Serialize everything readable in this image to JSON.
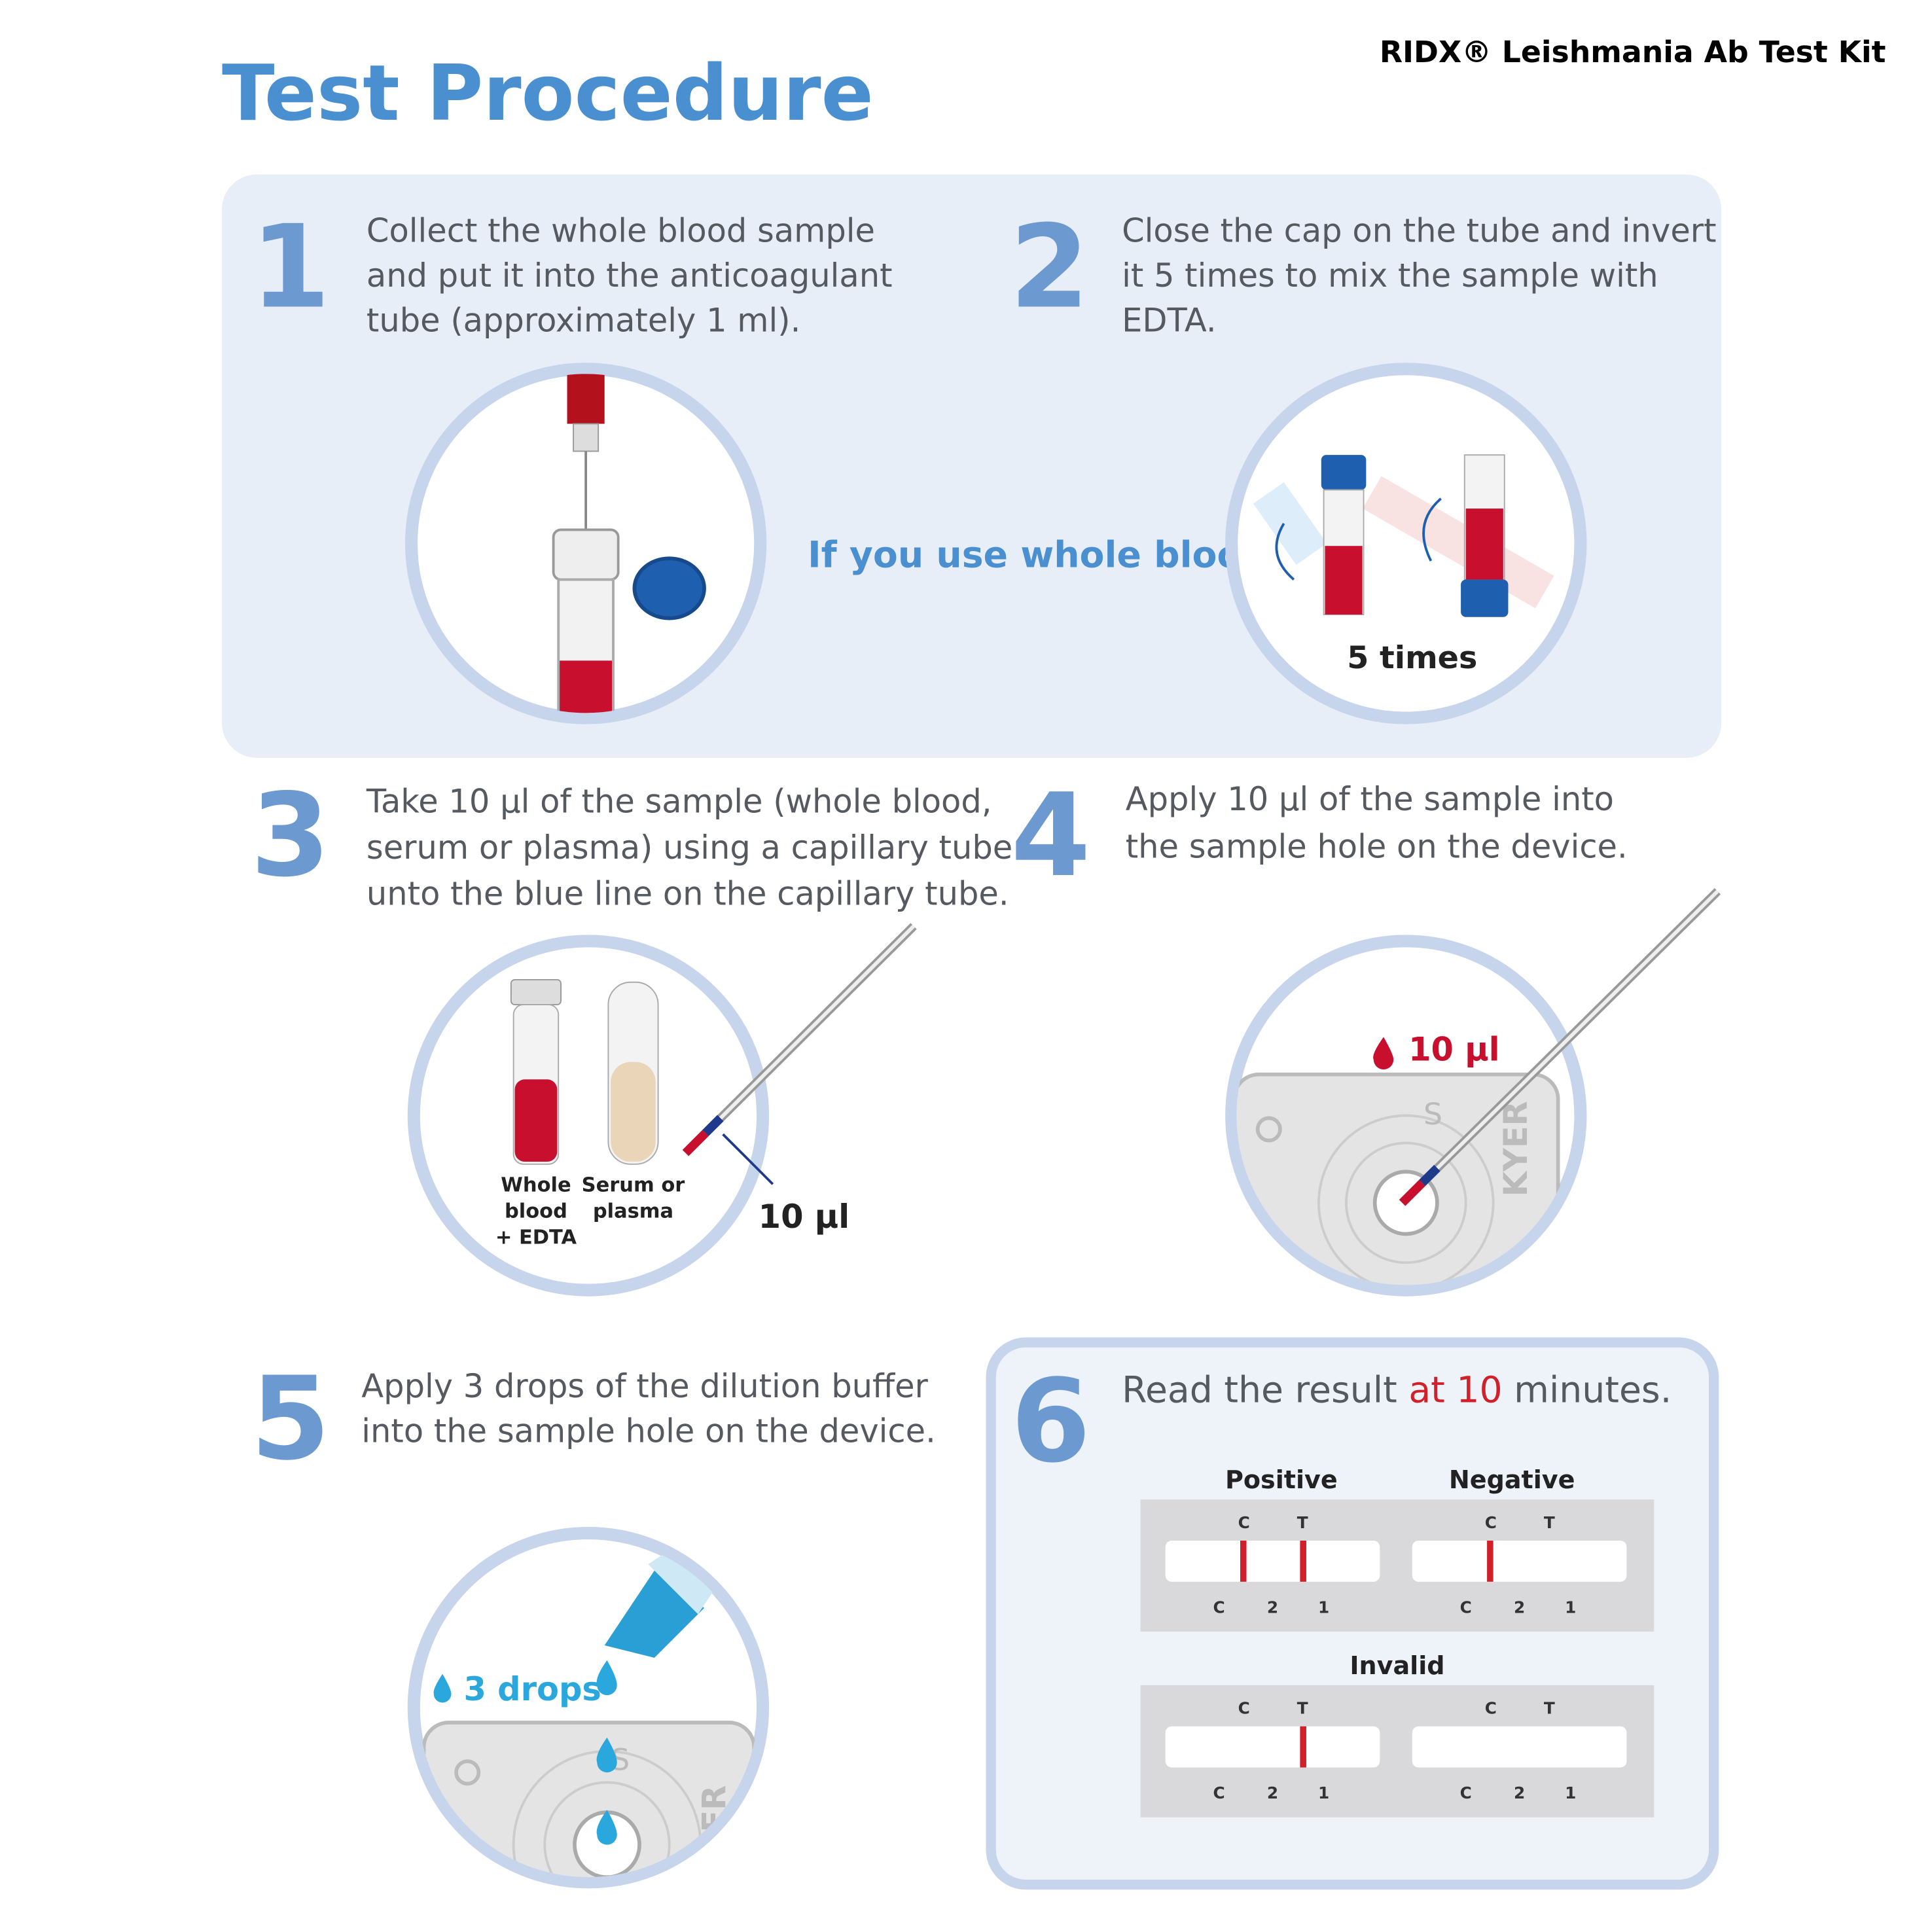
{
  "header": {
    "title": "Test Procedure",
    "product": "RIDX® Leishmania Ab Test Kit"
  },
  "panel_note": "If you use whole blood",
  "steps": [
    {
      "number": "1",
      "lines": [
        "Collect the whole blood sample",
        "and put it into the anticoagulant",
        "tube (approximately 1 ml)."
      ]
    },
    {
      "number": "2",
      "lines": [
        "Close the cap on the tube and invert",
        "it 5 times to mix the sample with",
        "EDTA."
      ],
      "figure_label": "5 times"
    },
    {
      "number": "3",
      "lines": [
        "Take 10 µl of the sample (whole blood,",
        "serum or plasma) using a capillary tube",
        "unto the blue line on the capillary tube."
      ],
      "tube_labels": [
        [
          "Whole",
          "blood",
          "+ EDTA"
        ],
        [
          "Serum or",
          "plasma"
        ]
      ],
      "figure_label": "10 µl"
    },
    {
      "number": "4",
      "lines": [
        "Apply 10 µl of the sample into",
        "the sample hole on the device."
      ],
      "figure_label": "10 µl",
      "device_marks": [
        "S",
        "KYER"
      ]
    },
    {
      "number": "5",
      "lines": [
        "Apply 3 drops of the dilution buffer",
        "into the sample hole on the device."
      ],
      "figure_label": "3 drops",
      "device_marks": [
        "S",
        "ER"
      ]
    },
    {
      "number": "6",
      "text_parts": [
        "Read the result ",
        "at 10",
        " minutes."
      ],
      "results": [
        "Positive",
        "Negative",
        "Invalid"
      ],
      "strip_labels": {
        "top": [
          "C",
          "T"
        ],
        "bottom": [
          "C",
          "2",
          "1"
        ]
      }
    }
  ]
}
